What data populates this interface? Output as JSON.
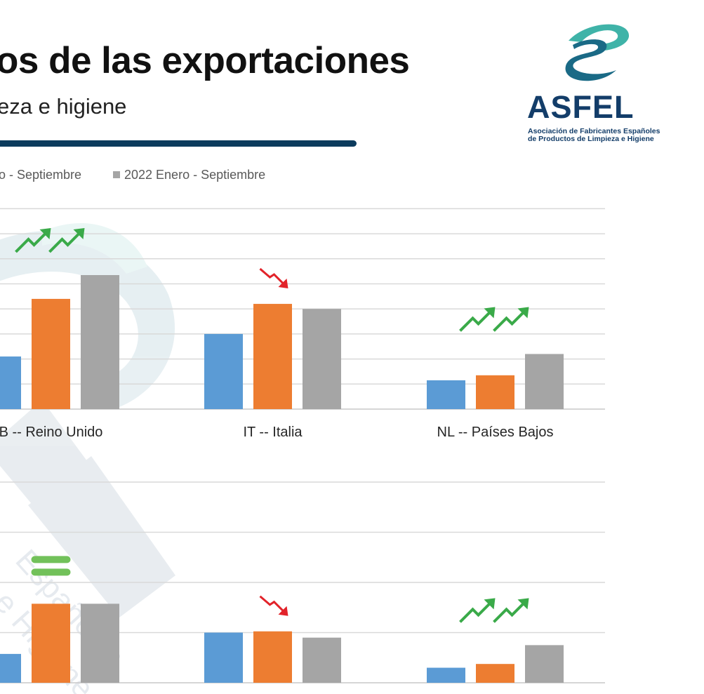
{
  "header": {
    "title": "os de las exportaciones",
    "subtitle": "eza e higiene"
  },
  "logo": {
    "name": "ASFEL",
    "tagline_1": "Asociación de Fabricantes Españoles",
    "tagline_2": "de Productos de Limpieza e Higiene"
  },
  "watermark": {
    "text": "Españoles",
    "text_2": "e Higiene"
  },
  "legend": {
    "item_1": "o - Septiembre",
    "item_2": "2022 Enero - Septiembre"
  },
  "colors": {
    "blue": "#5b9bd5",
    "orange": "#ed7d31",
    "gray": "#a5a5a5",
    "trend_up": "#3aaa49",
    "trend_down": "#e2232a",
    "equal": "#72c15a"
  },
  "chart_data": [
    {
      "type": "bar",
      "title": "",
      "categories": [
        "B -- Reino Unido",
        "IT -- Italia",
        "NL -- Países Bajos"
      ],
      "series": [
        {
          "name": "o - Septiembre",
          "color": "#5b9bd5",
          "values": [
            21,
            30,
            11.5
          ]
        },
        {
          "name": "",
          "color": "#ed7d31",
          "values": [
            44,
            42,
            13.5
          ]
        },
        {
          "name": "2022 Enero - Septiembre",
          "color": "#a5a5a5",
          "values": [
            53.5,
            40,
            22
          ]
        }
      ],
      "trends": [
        "up",
        "down",
        "up"
      ],
      "ylim": [
        0,
        80
      ],
      "grid": true,
      "legend": "top"
    },
    {
      "type": "bar",
      "title": "",
      "categories": [
        "",
        "",
        ""
      ],
      "series": [
        {
          "name": "o - Septiembre",
          "color": "#5b9bd5",
          "values": [
            11.5,
            20,
            6
          ]
        },
        {
          "name": "",
          "color": "#ed7d31",
          "values": [
            31.5,
            20.5,
            7.5
          ]
        },
        {
          "name": "2022 Enero - Septiembre",
          "color": "#a5a5a5",
          "values": [
            31.5,
            18,
            15
          ]
        }
      ],
      "trends": [
        "equal",
        "down",
        "up"
      ],
      "ylim": [
        0,
        80
      ],
      "grid": true
    }
  ]
}
